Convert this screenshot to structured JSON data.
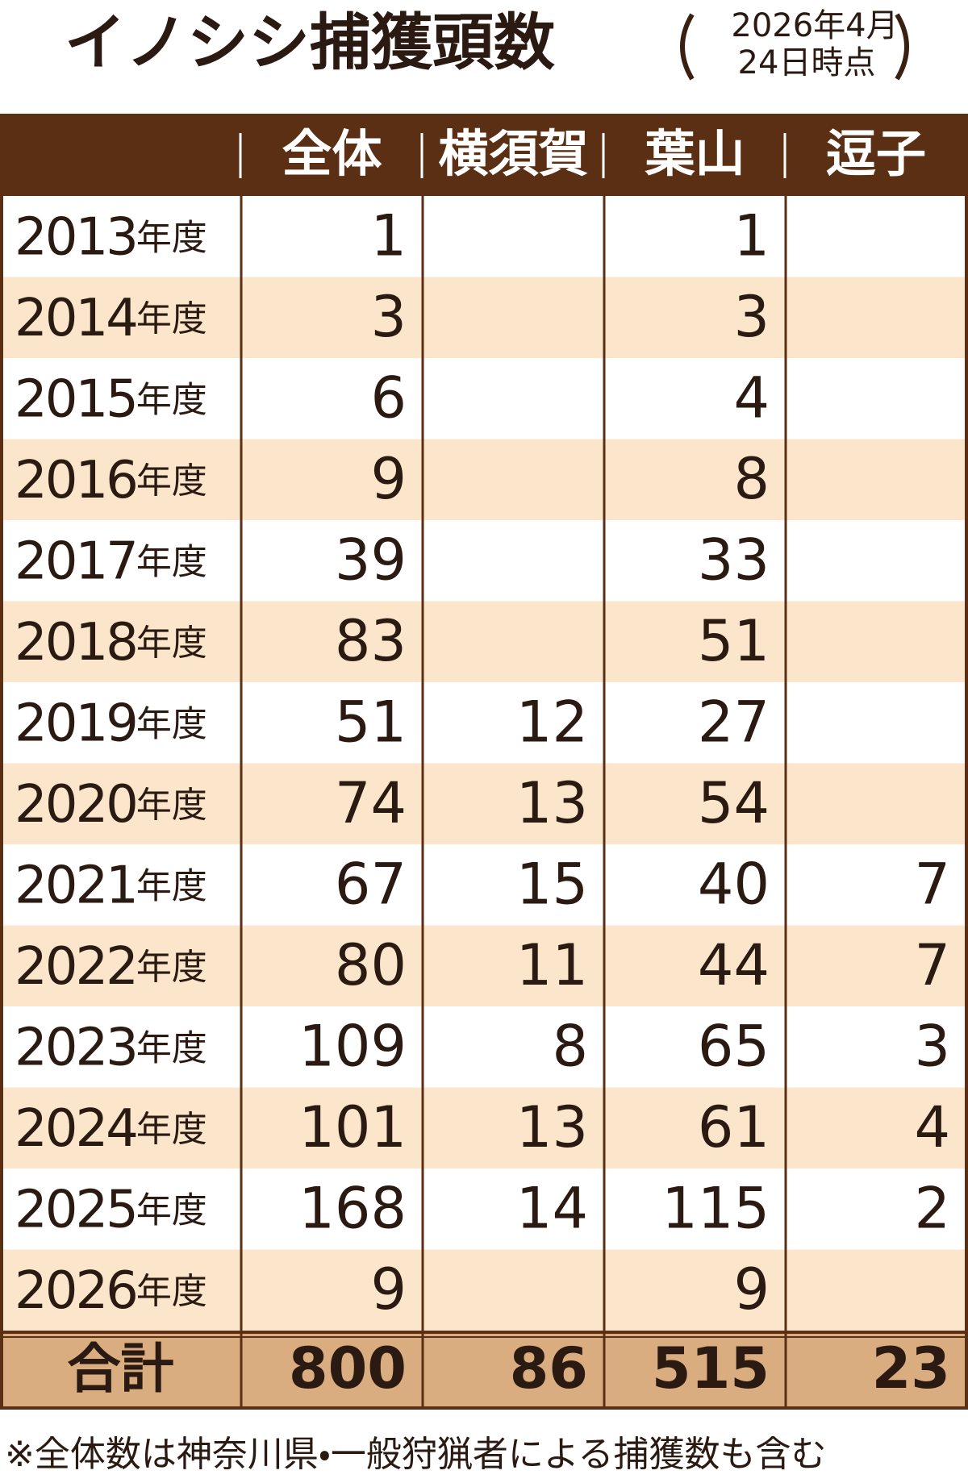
{
  "header": {
    "title": "イノシシ捕獲頭数",
    "note_line1": "2026年4月",
    "note_line2": "24日時点"
  },
  "table": {
    "columns": [
      "全体",
      "横須賀",
      "葉山",
      "逗子"
    ],
    "rows": [
      {
        "year": "2013",
        "unit": "年度",
        "cells": [
          1,
          null,
          1,
          null
        ]
      },
      {
        "year": "2014",
        "unit": "年度",
        "cells": [
          3,
          null,
          3,
          null
        ]
      },
      {
        "year": "2015",
        "unit": "年度",
        "cells": [
          6,
          null,
          4,
          null
        ]
      },
      {
        "year": "2016",
        "unit": "年度",
        "cells": [
          9,
          null,
          8,
          null
        ]
      },
      {
        "year": "2017",
        "unit": "年度",
        "cells": [
          39,
          null,
          33,
          null
        ]
      },
      {
        "year": "2018",
        "unit": "年度",
        "cells": [
          83,
          null,
          51,
          null
        ]
      },
      {
        "year": "2019",
        "unit": "年度",
        "cells": [
          51,
          12,
          27,
          null
        ]
      },
      {
        "year": "2020",
        "unit": "年度",
        "cells": [
          74,
          13,
          54,
          null
        ]
      },
      {
        "year": "2021",
        "unit": "年度",
        "cells": [
          67,
          15,
          40,
          7
        ]
      },
      {
        "year": "2022",
        "unit": "年度",
        "cells": [
          80,
          11,
          44,
          7
        ]
      },
      {
        "year": "2023",
        "unit": "年度",
        "cells": [
          109,
          8,
          65,
          3
        ]
      },
      {
        "year": "2024",
        "unit": "年度",
        "cells": [
          101,
          13,
          61,
          4
        ]
      },
      {
        "year": "2025",
        "unit": "年度",
        "cells": [
          168,
          14,
          115,
          2
        ]
      },
      {
        "year": "2026",
        "unit": "年度",
        "cells": [
          9,
          null,
          9,
          null
        ]
      }
    ],
    "total": {
      "label": "合計",
      "cells": [
        800,
        86,
        515,
        23
      ]
    }
  },
  "footnote": "※全体数は神奈川県・一般狩猟者による捕獲数も含む"
}
